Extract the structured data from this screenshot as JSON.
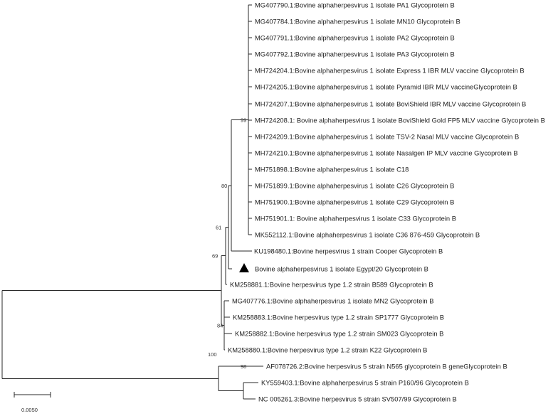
{
  "tree": {
    "leaves": [
      {
        "label": "MG407790.1:Bovine alphaherpesvirus 1 isolate PA1 Glycoprotein B"
      },
      {
        "label": "MG407784.1:Bovine alphaherpesvirus 1 isolate MN10 Glycoprotein B"
      },
      {
        "label": "MG407791.1:Bovine alphaherpesvirus 1 isolate PA2 Glycoprotein B"
      },
      {
        "label": "MG407792.1:Bovine alphaherpesvirus 1 isolate PA3 Glycoprotein B"
      },
      {
        "label": "MH724204.1:Bovine alphaherpesvirus 1 isolate Express 1 IBR MLV vaccine Glycoprotein B"
      },
      {
        "label": "MH724205.1:Bovine alphaherpesvirus 1 isolate Pyramid IBR MLV vaccineGlycoprotein B"
      },
      {
        "label": "MH724207.1:Bovine alphaherpesvirus 1 isolate BoviShield IBR MLV vaccine Glycoprotein B"
      },
      {
        "label": "MH724208.1: Bovine alphaherpesvirus 1 isolate BoviShield Gold FP5 MLV vaccine Glycoprotein B"
      },
      {
        "label": "MH724209.1:Bovine alphaherpesvirus 1 isolate TSV-2 Nasal MLV vaccine Glycoprotein B"
      },
      {
        "label": "MH724210.1:Bovine alphaherpesvirus 1 isolate Nasalgen IP MLV vaccine Glycoprotein B"
      },
      {
        "label": "MH751898.1:Bovine alphaherpesvirus 1 isolate C18"
      },
      {
        "label": "MH751899.1:Bovine alphaherpesvirus 1 isolate C26 Glycoprotein B"
      },
      {
        "label": "MH751900.1:Bovine alphaherpesvirus 1 isolate C29 Glycoprotein B"
      },
      {
        "label": "MH751901.1: Bovine alphaherpesvirus 1 isolate C33 Glycoprotein B"
      },
      {
        "label": "MK552112.1:Bovine alphaherpesvirus 1 isolate C36 876-459 Glycoprotein B"
      },
      {
        "label": "KU198480.1:Bovine herpesvirus 1 strain Cooper Glycoprotein B"
      },
      {
        "label": "Bovine alphaherpesvirus 1 isolate Egypt/20 Glycoprotein B",
        "marker": "triangle"
      },
      {
        "label": "KM258881.1:Bovine herpesvirus type 1.2 strain B589 Glycoprotein B"
      },
      {
        "label": "MG407776.1:Bovine alphaherpesvirus 1 isolate MN2 Glycoprotein B"
      },
      {
        "label": "KM258883.1:Bovine herpesvirus type 1.2 strain SP1777 Glycoprotein B"
      },
      {
        "label": "KM258882.1:Bovine herpesvirus type 1.2 strain SM023 Glycoprotein B"
      },
      {
        "label": "KM258880.1:Bovine herpesvirus type 1.2 strain K22 Glycoprotein B"
      },
      {
        "label": "AF078726.2:Bovine herpesvirus 5 strain N565 glycoprotein B geneGlycoprotein B"
      },
      {
        "label": "KY559403.1:Bovine alphaherpesvirus 5 strain P160/96 Glycoprotein B"
      },
      {
        "label": "NC 005261.3:Bovine herpesvirus 5 strain SV507/99 Glycoprotein B"
      }
    ],
    "bootstrap": [
      "99",
      "80",
      "61",
      "69",
      "84",
      "100",
      "98"
    ],
    "marker_colors": {
      "triangle": "#000000",
      "branch": "#2a2a2a"
    },
    "scale_bar": {
      "label": "0.0050",
      "length_units": 0.005
    }
  }
}
